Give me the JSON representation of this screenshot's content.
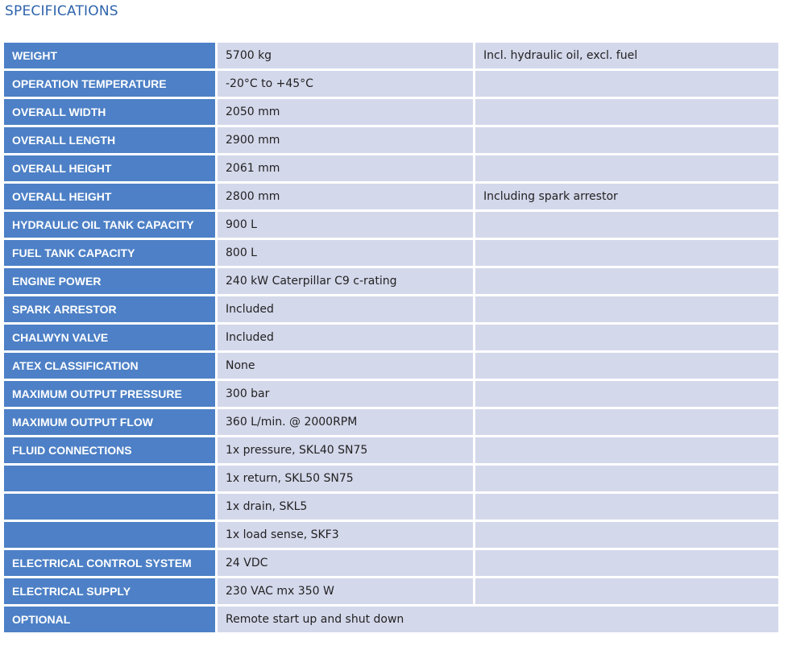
{
  "title": "SPECIFICATIONS",
  "rows": [
    {
      "label": "WEIGHT",
      "value": "5700 kg",
      "note": "Incl. hydraulic oil, excl. fuel"
    },
    {
      "label": "OPERATION TEMPERATURE",
      "value": "-20°C to +45°C",
      "note": ""
    },
    {
      "label": "OVERALL WIDTH",
      "value": "2050 mm",
      "note": ""
    },
    {
      "label": "OVERALL LENGTH",
      "value": "2900 mm",
      "note": ""
    },
    {
      "label": "OVERALL HEIGHT",
      "value": "2061 mm",
      "note": ""
    },
    {
      "label": "OVERALL HEIGHT",
      "value": "2800 mm",
      "note": "Including spark arrestor"
    },
    {
      "label": "HYDRAULIC OIL TANK CAPACITY",
      "value": "900 L",
      "note": ""
    },
    {
      "label": "FUEL TANK CAPACITY",
      "value": "800 L",
      "note": ""
    },
    {
      "label": "ENGINE POWER",
      "value": "240 kW Caterpillar C9 c-rating",
      "note": ""
    },
    {
      "label": "SPARK ARRESTOR",
      "value": "Included",
      "note": ""
    },
    {
      "label": "CHALWYN VALVE",
      "value": "Included",
      "note": ""
    },
    {
      "label": "ATEX CLASSIFICATION",
      "value": "None",
      "note": ""
    },
    {
      "label": "MAXIMUM OUTPUT PRESSURE",
      "value": "300 bar",
      "note": ""
    },
    {
      "label": "MAXIMUM OUTPUT FLOW",
      "value": "360 L/min. @ 2000RPM",
      "note": ""
    },
    {
      "label": "FLUID CONNECTIONS",
      "value": "1x pressure, SKL40 SN75",
      "note": ""
    },
    {
      "label": "",
      "value": "1x return, SKL50 SN75",
      "note": ""
    },
    {
      "label": "",
      "value": "1x drain, SKL5",
      "note": ""
    },
    {
      "label": "",
      "value": "1x load sense, SKF3",
      "note": ""
    },
    {
      "label": "ELECTRICAL CONTROL SYSTEM",
      "value": "24 VDC",
      "note": ""
    },
    {
      "label": "ELECTRICAL SUPPLY",
      "value": "230 VAC mx 350 W",
      "note": ""
    },
    {
      "label": "OPTIONAL",
      "value": "Remote start up and shut down",
      "note": ""
    }
  ]
}
